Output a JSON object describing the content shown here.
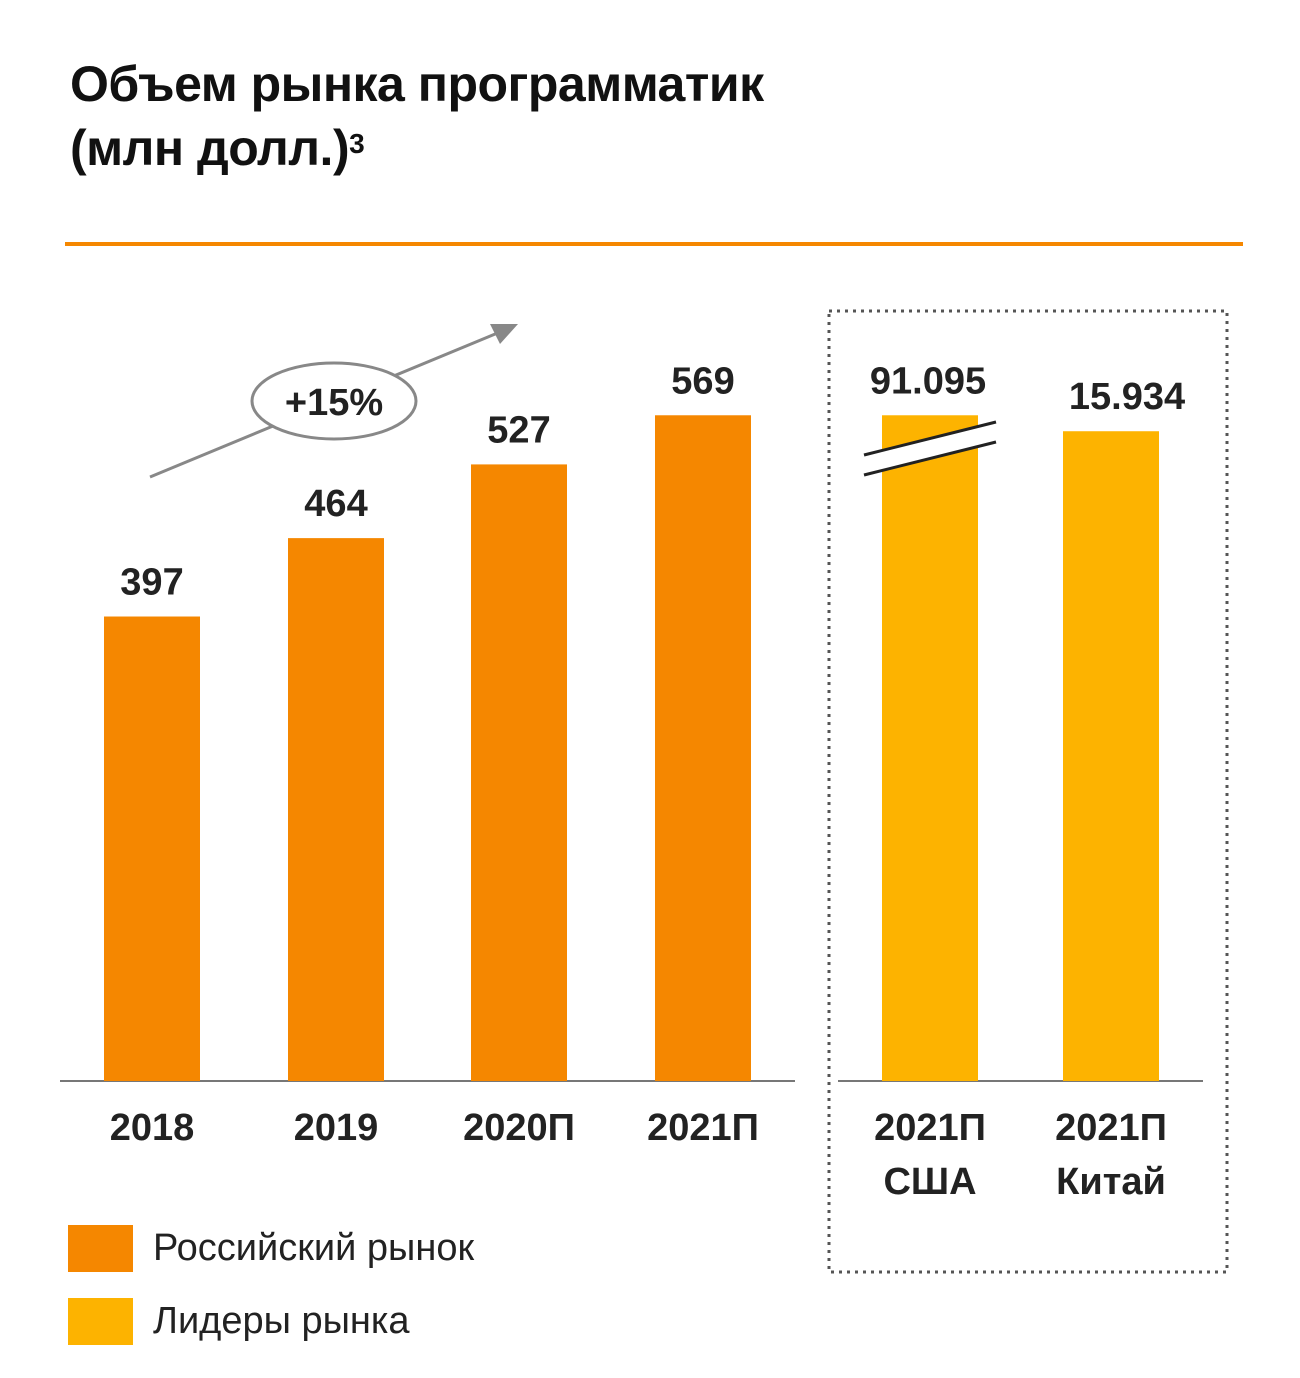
{
  "title": {
    "line1": "Объем рынка программатик",
    "line2": "(млн долл.)",
    "footnote": "3"
  },
  "colors": {
    "russia": "#F58700",
    "leaders": "#FDB300",
    "rule": "#F58700"
  },
  "chart_data": {
    "type": "bar",
    "title": "Объем рынка программатик (млн долл.)",
    "groups": [
      {
        "name": "Российский рынок",
        "categories": [
          [
            "2018"
          ],
          [
            "2019"
          ],
          [
            "2020П"
          ],
          [
            "2021П"
          ]
        ],
        "values": [
          397,
          464,
          527,
          569
        ],
        "labels": [
          "397",
          "464",
          "527",
          "569"
        ]
      },
      {
        "name": "Лидеры рынка",
        "categories": [
          [
            "2021П",
            "США"
          ],
          [
            "2021П",
            "Китай"
          ]
        ],
        "values": [
          91095,
          15934
        ],
        "labels": [
          "91.095",
          "15.934"
        ],
        "axis_break_on": "США"
      }
    ],
    "annotation": "+15%",
    "legend": [
      "Российский рынок",
      "Лидеры рынка"
    ],
    "legend_position": "bottom-left"
  }
}
